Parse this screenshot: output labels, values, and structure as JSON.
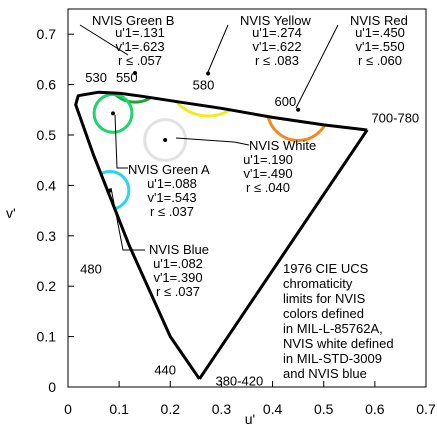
{
  "chart_data": {
    "type": "scatter",
    "title": "",
    "xlabel": "u'",
    "ylabel": "v'",
    "xlim": [
      0,
      0.7
    ],
    "ylim": [
      0,
      0.75
    ],
    "xticks": [
      "0",
      "0.1",
      "0.2",
      "0.3",
      "0.4",
      "0.5",
      "0.6",
      "0.7"
    ],
    "yticks": [
      "0",
      "0.1",
      "0.2",
      "0.3",
      "0.4",
      "0.5",
      "0.6",
      "0.7"
    ],
    "grid": false,
    "locus": [
      [
        0.257,
        0.016
      ],
      [
        0.2,
        0.1
      ],
      [
        0.12,
        0.28
      ],
      [
        0.05,
        0.46
      ],
      [
        0.015,
        0.56
      ],
      [
        0.02,
        0.578
      ],
      [
        0.06,
        0.585
      ],
      [
        0.1,
        0.583
      ],
      [
        0.15,
        0.576
      ],
      [
        0.22,
        0.565
      ],
      [
        0.3,
        0.553
      ],
      [
        0.4,
        0.535
      ],
      [
        0.5,
        0.52
      ],
      [
        0.585,
        0.51
      ]
    ],
    "purple_line": [
      [
        0.585,
        0.51
      ],
      [
        0.257,
        0.016
      ]
    ],
    "wavelength_labels": [
      {
        "text": "530",
        "u": 0.055,
        "v": 0.605
      },
      {
        "text": "550",
        "u": 0.115,
        "v": 0.605
      },
      {
        "text": "580",
        "u": 0.265,
        "v": 0.59
      },
      {
        "text": "600",
        "u": 0.425,
        "v": 0.558
      },
      {
        "text": "700-780",
        "u": 0.64,
        "v": 0.525
      },
      {
        "text": "480",
        "u": 0.045,
        "v": 0.225
      },
      {
        "text": "440",
        "u": 0.19,
        "v": 0.025
      },
      {
        "text": "380-420",
        "u": 0.335,
        "v": 0.003
      }
    ],
    "series": [
      {
        "name": "NVIS Green B",
        "u": 0.131,
        "v": 0.623,
        "r": 0.057,
        "color": "#22a13c",
        "lines": [
          "NVIS Green B",
          "u'1=.131",
          "v'1=.623",
          "r ≤ .057"
        ]
      },
      {
        "name": "NVIS Yellow",
        "u": 0.274,
        "v": 0.622,
        "r": 0.083,
        "color": "#f2ea1a",
        "lines": [
          "NVIS Yellow",
          "u'1=.274",
          "v'1=.622",
          "r ≤ .083"
        ]
      },
      {
        "name": "NVIS Red",
        "u": 0.45,
        "v": 0.55,
        "r": 0.06,
        "color": "#f5891f",
        "lines": [
          "NVIS Red",
          "u'1=.450",
          "v'1=.550",
          "r ≤ .060"
        ]
      },
      {
        "name": "NVIS Green A",
        "u": 0.088,
        "v": 0.543,
        "r": 0.037,
        "color": "#1fd46a",
        "lines": [
          "NVIS Green A",
          "u'1=.088",
          "v'1=.543",
          "r ≤ .037"
        ]
      },
      {
        "name": "NVIS White",
        "u": 0.19,
        "v": 0.49,
        "r": 0.04,
        "color": "#e2e2e2",
        "lines": [
          "NVIS White",
          "u'1=.190",
          "v'1=.490",
          "r ≤ .040"
        ]
      },
      {
        "name": "NVIS Blue",
        "u": 0.082,
        "v": 0.39,
        "r": 0.037,
        "color": "#2cd6ea",
        "lines": [
          "NVIS Blue",
          "u'1=.082",
          "v'1=.390",
          "r ≤ .037"
        ]
      }
    ],
    "note": [
      "1976 CIE UCS",
      "chromaticity",
      "limits for NVIS",
      "colors defined",
      "in MIL-L-85762A,",
      "NVIS white defined",
      "in MIL-STD-3009",
      "and NVIS blue"
    ]
  }
}
